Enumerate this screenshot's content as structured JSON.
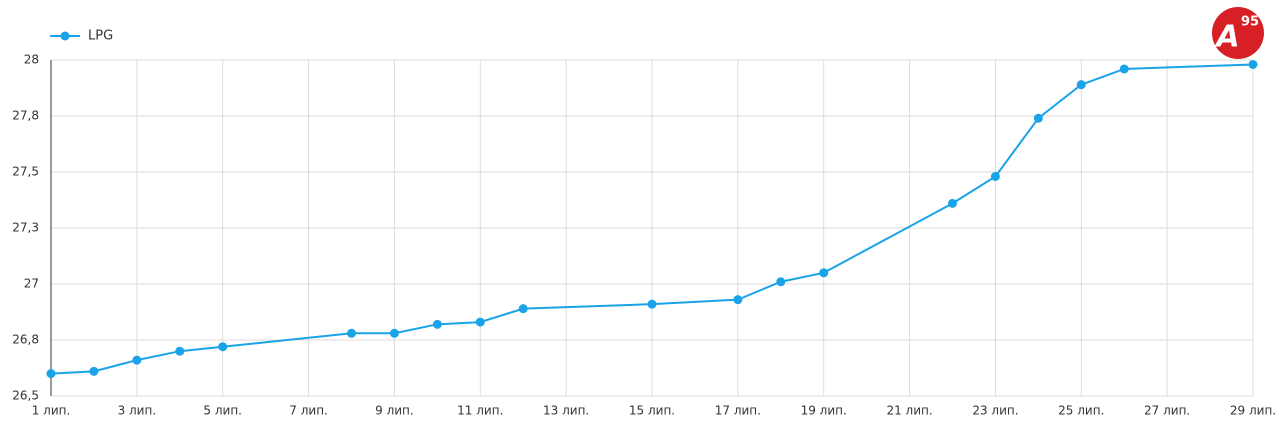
{
  "chart_data": {
    "type": "line",
    "x": [
      1,
      2,
      3,
      4,
      5,
      8,
      9,
      10,
      11,
      12,
      15,
      17,
      18,
      19,
      22,
      23,
      24,
      25,
      26,
      29
    ],
    "series": [
      {
        "name": "LPG",
        "color": "#1aa3e8",
        "values": [
          26.6,
          26.61,
          26.66,
          26.7,
          26.72,
          26.78,
          26.78,
          26.82,
          26.83,
          26.89,
          26.91,
          26.93,
          27.01,
          27.05,
          27.36,
          27.48,
          27.74,
          27.89,
          27.96,
          27.98
        ]
      }
    ],
    "xlim": [
      1,
      29
    ],
    "xticks": [
      {
        "value": 1,
        "label": "1 лип."
      },
      {
        "value": 3,
        "label": "3 лип."
      },
      {
        "value": 5,
        "label": "5 лип."
      },
      {
        "value": 7,
        "label": "7 лип."
      },
      {
        "value": 9,
        "label": "9 лип."
      },
      {
        "value": 11,
        "label": "11 лип."
      },
      {
        "value": 13,
        "label": "13 лип."
      },
      {
        "value": 15,
        "label": "15 лип."
      },
      {
        "value": 17,
        "label": "17 лип."
      },
      {
        "value": 19,
        "label": "19 лип."
      },
      {
        "value": 21,
        "label": "21 лип."
      },
      {
        "value": 23,
        "label": "23 лип."
      },
      {
        "value": 25,
        "label": "25 лип."
      },
      {
        "value": 27,
        "label": "27 лип."
      },
      {
        "value": 29,
        "label": "29 лип."
      }
    ],
    "ylim": [
      26.5,
      28
    ],
    "yticks": [
      {
        "value": 26.5,
        "label": "26,5"
      },
      {
        "value": 26.75,
        "label": "26,8"
      },
      27,
      {
        "value": 27.25,
        "label": "27,3"
      },
      {
        "value": 27.5,
        "label": "27,5"
      },
      {
        "value": 27.75,
        "label": "27,8"
      },
      28
    ],
    "grid": true,
    "legend": "top-left"
  },
  "logo": {
    "letter": "A",
    "number": "95"
  }
}
